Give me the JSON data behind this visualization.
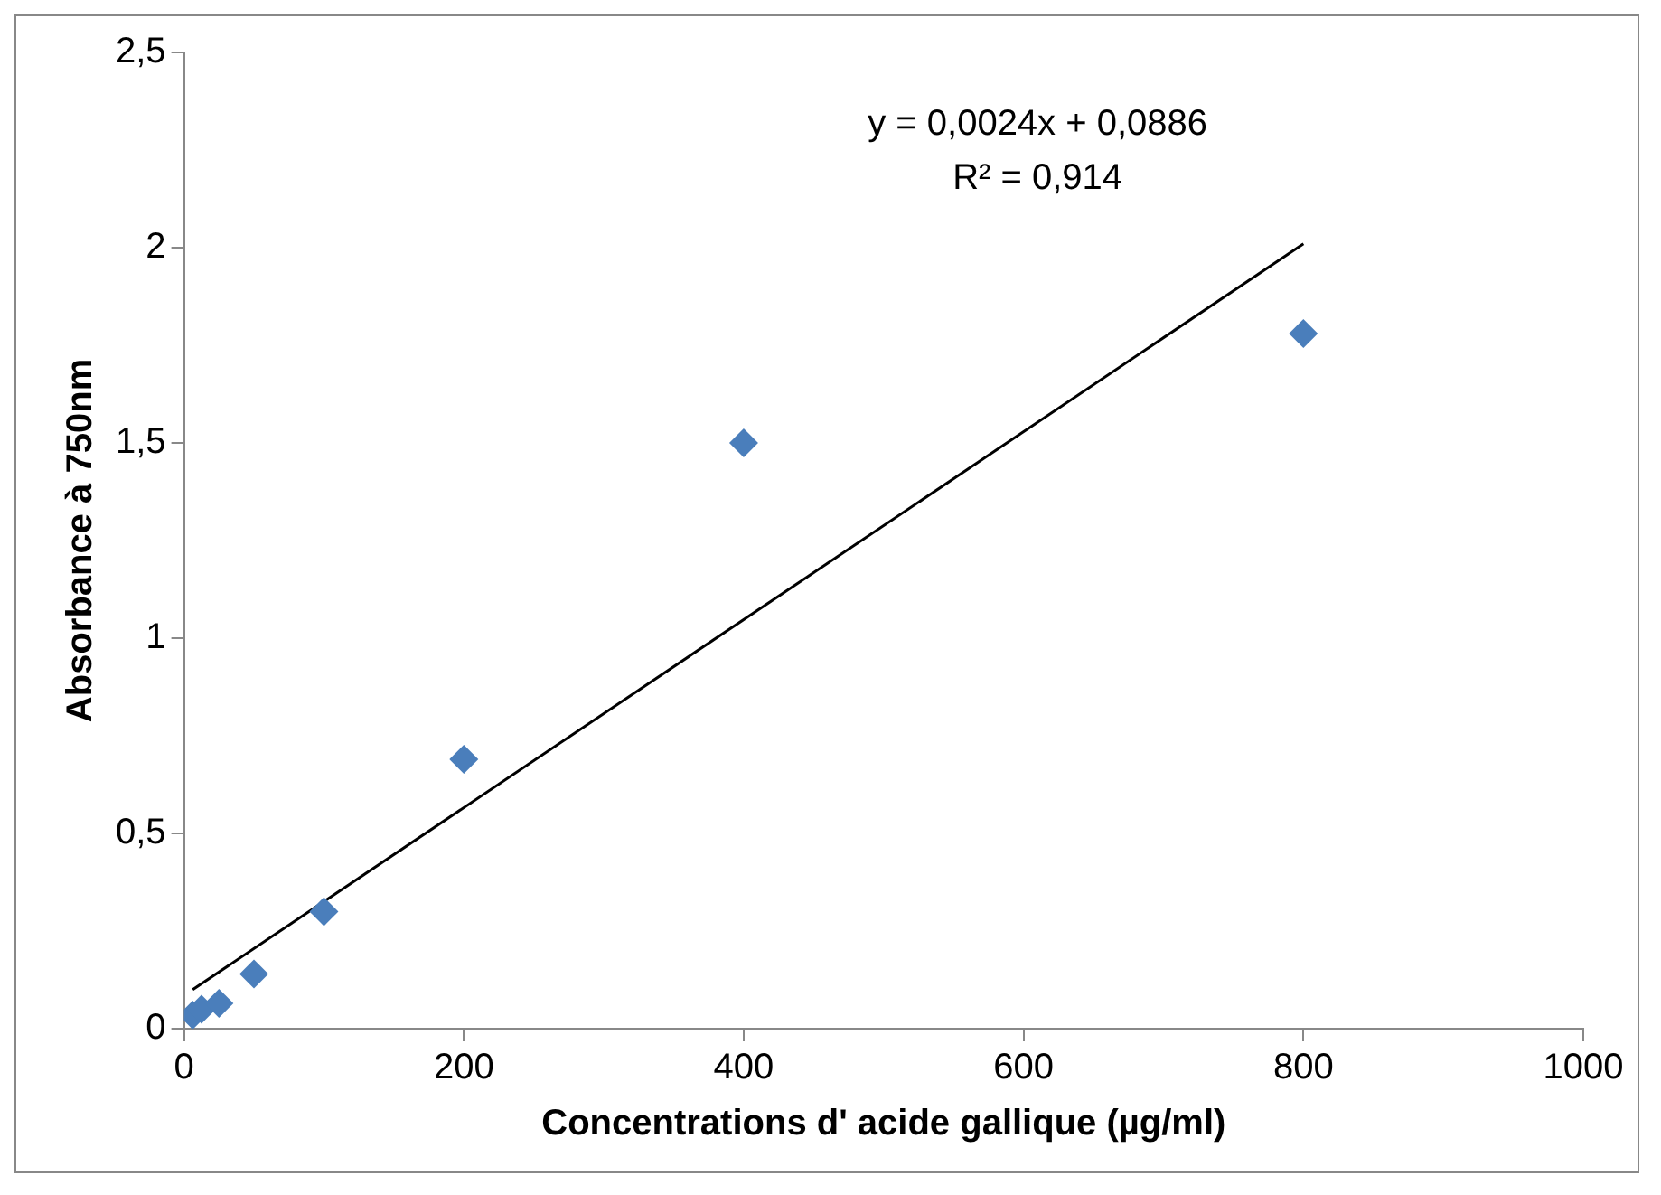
{
  "chart_data": {
    "type": "scatter",
    "xlabel": "Concentrations d' acide gallique (µg/ml)",
    "ylabel": "Absorbance à 750nm",
    "series": [
      {
        "color": "#4a7ebb",
        "marker": "diamond",
        "x": [
          6.25,
          12.5,
          25,
          50,
          100,
          200,
          400,
          800
        ],
        "values": [
          0.035,
          0.05,
          0.065,
          0.14,
          0.3,
          0.69,
          1.5,
          1.78
        ]
      },
      {
        "type": "line",
        "color": "#000000",
        "marker": "none",
        "x": [
          6.25,
          800
        ],
        "values": [
          0.1,
          2.01
        ]
      }
    ],
    "annotations": [
      "y = 0,0024x + 0,0886",
      "R² = 0,914"
    ],
    "xlim": [
      0,
      1000
    ],
    "xticks": [
      0,
      200,
      400,
      600,
      800,
      1000
    ],
    "ylim": [
      0,
      2.5
    ],
    "yticks": [
      {
        "value": 0,
        "label": "0"
      },
      {
        "value": 0.5,
        "label": "0,5"
      },
      {
        "value": 1,
        "label": "1"
      },
      {
        "value": 1.5,
        "label": "1,5"
      },
      {
        "value": 2,
        "label": "2"
      },
      {
        "value": 2.5,
        "label": "2,5"
      }
    ],
    "grid": false,
    "legend": false
  }
}
